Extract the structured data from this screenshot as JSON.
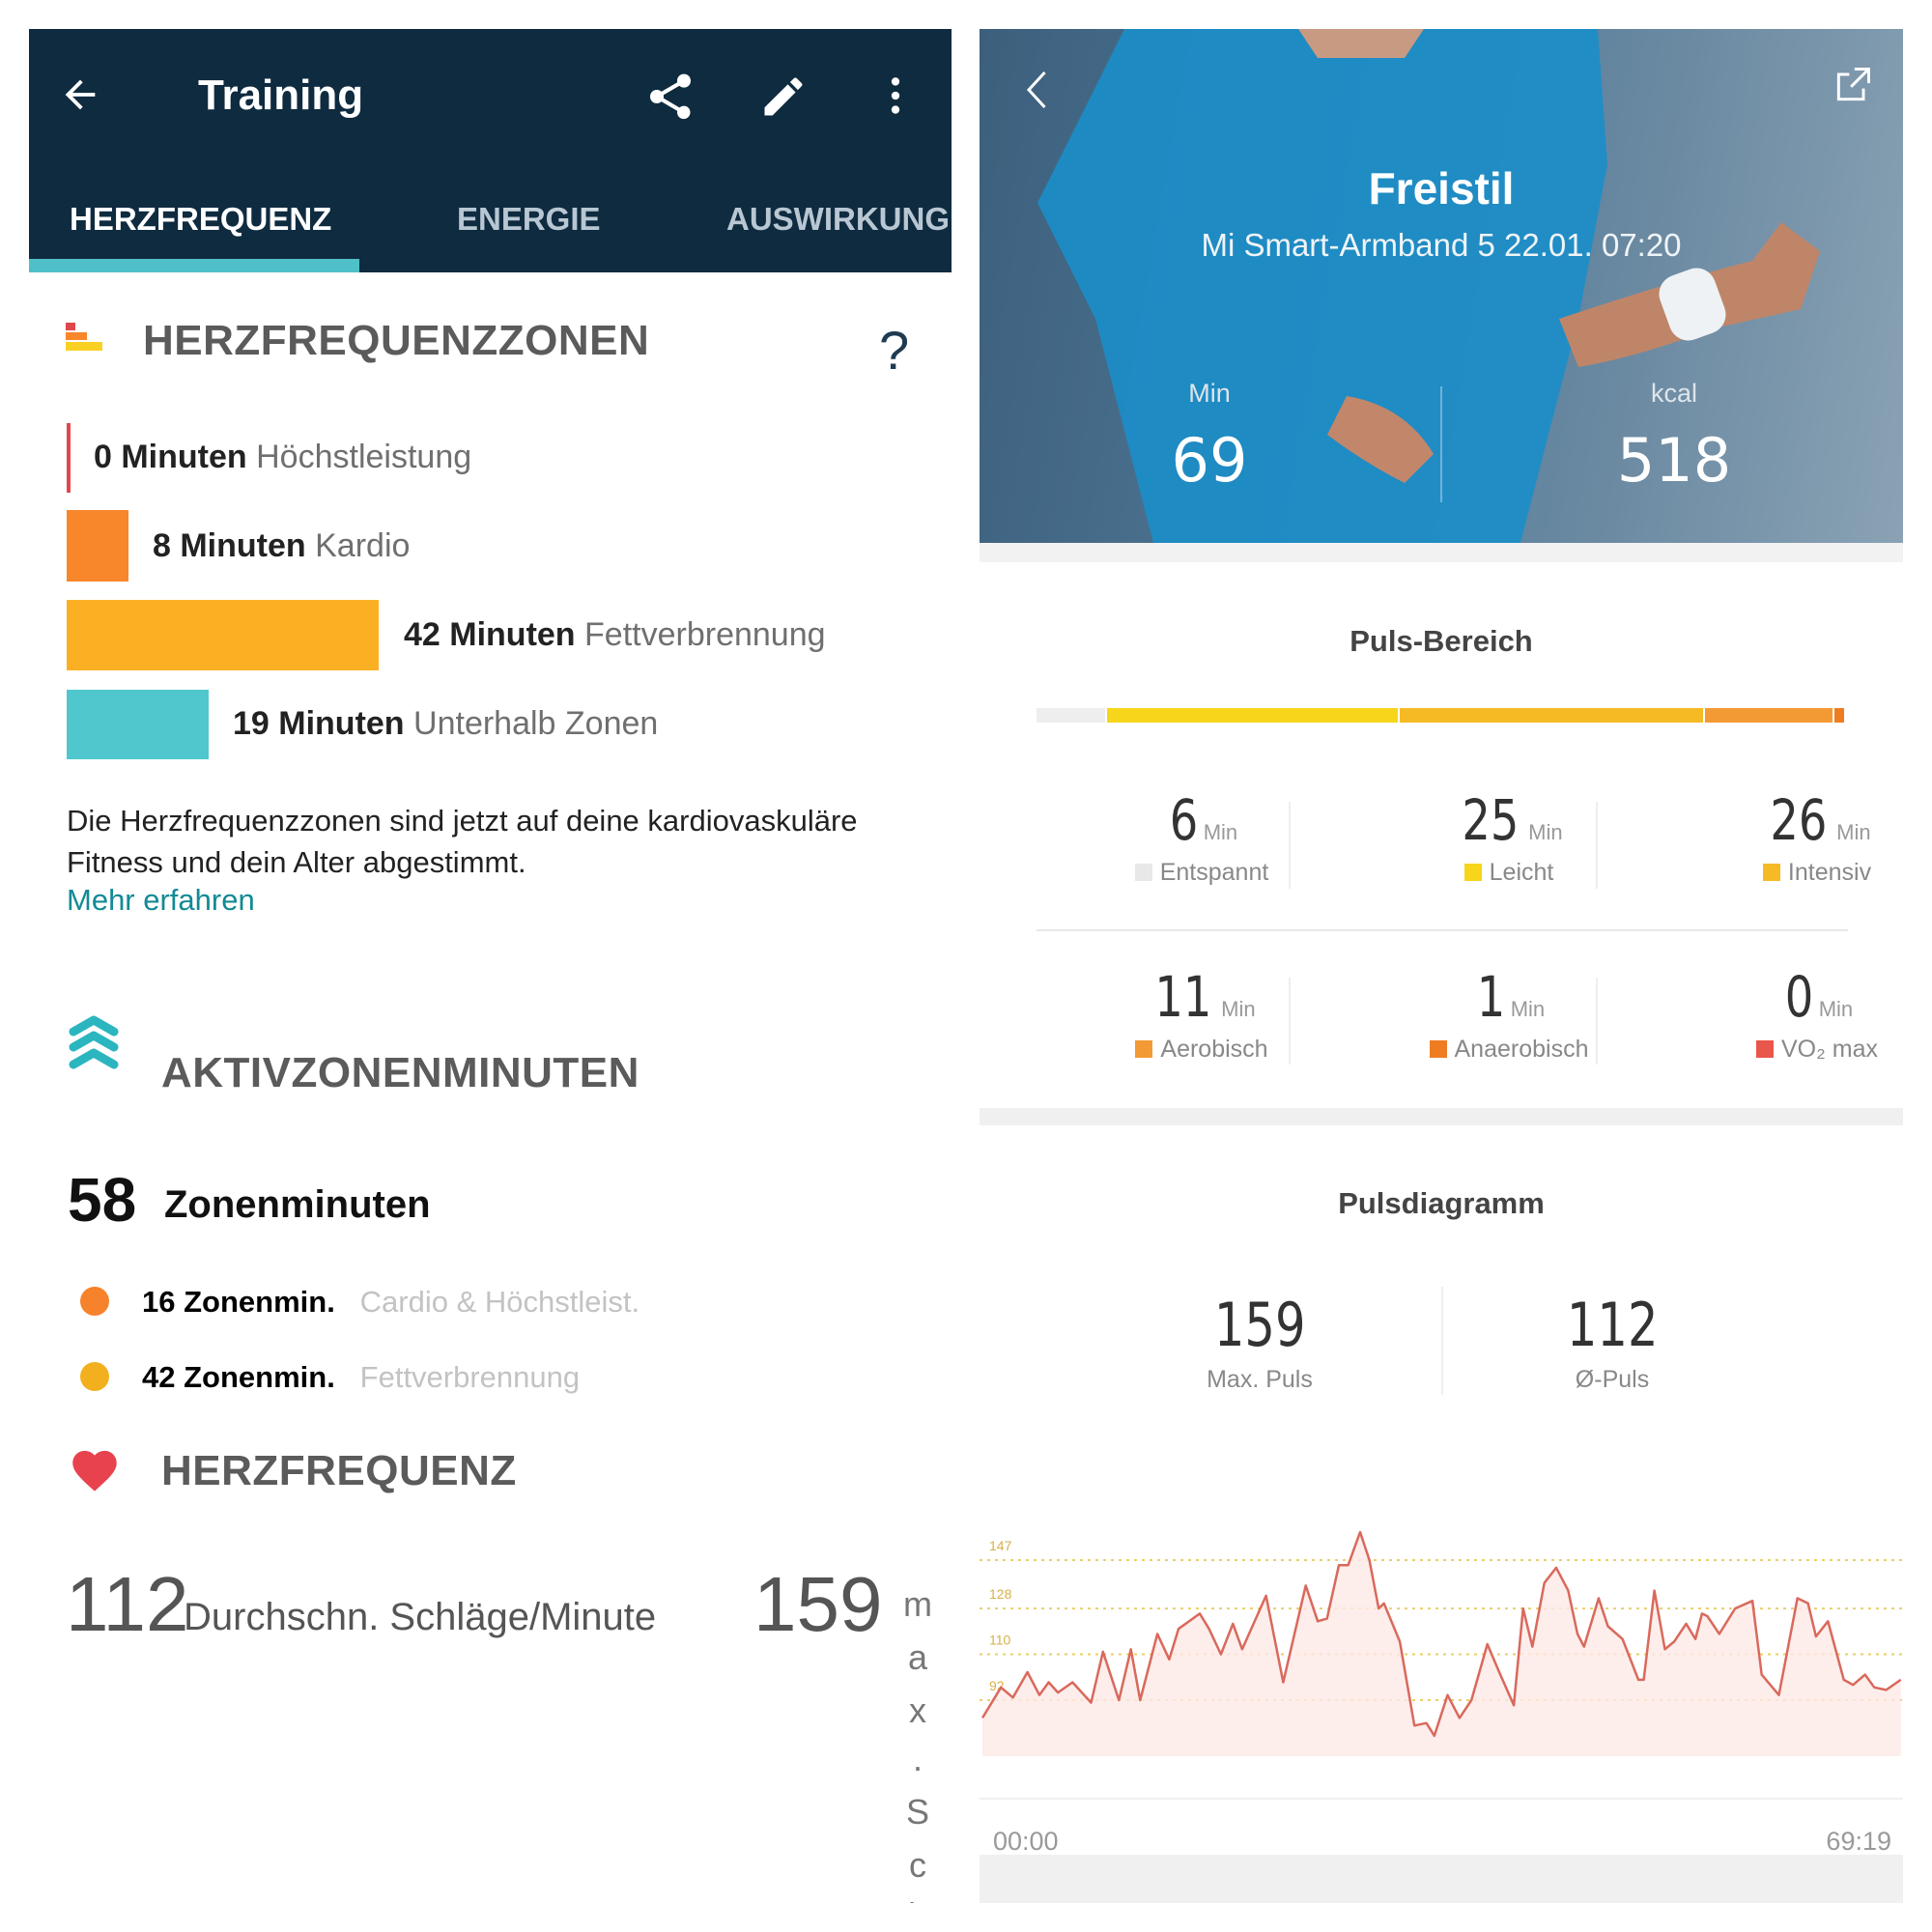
{
  "left": {
    "title": "Training",
    "icons": {
      "back": "arrow-left-icon",
      "share": "share-icon",
      "edit": "pencil-icon",
      "more": "more-vertical-icon"
    },
    "tabs": [
      {
        "label": "HERZFREQUENZ",
        "active": true
      },
      {
        "label": "ENERGIE"
      },
      {
        "label": "AUSWIRKUNGE"
      }
    ],
    "zones_section": {
      "title": "HERZFREQUENZZONEN",
      "help": "?",
      "zones": [
        {
          "minutes": "0 Minuten",
          "name": "Höchstleistung",
          "value": 0,
          "color": "#e0474c"
        },
        {
          "minutes": "8 Minuten",
          "name": "Kardio",
          "value": 8,
          "color": "#f8862a"
        },
        {
          "minutes": "42 Minuten",
          "name": "Fettverbrennung",
          "value": 42,
          "color": "#fbb024"
        },
        {
          "minutes": "19 Minuten",
          "name": "Unterhalb Zonen",
          "value": 19,
          "color": "#4fc7cc"
        }
      ],
      "info": "Die Herzfrequenzzonen sind jetzt auf deine kardiovaskuläre Fitness und dein Alter abgestimmt.",
      "link": "Mehr erfahren"
    },
    "azm": {
      "title": "AKTIVZONENMINUTEN",
      "total": "58",
      "total_label": "Zonenminuten",
      "rows": [
        {
          "value": "16 Zonenmin.",
          "label": "Cardio & Höchstleist.",
          "color": "#f6822b"
        },
        {
          "value": "42 Zonenmin.",
          "label": "Fettverbrennung",
          "color": "#f2b01f"
        }
      ]
    },
    "hr": {
      "title": "HERZFREQUENZ",
      "avg": "112",
      "avg_label": "Durchschn. Schläge/Minute",
      "max": "159",
      "max_label_chars": [
        "m",
        "a",
        "x",
        ".",
        "S",
        "c",
        "h"
      ]
    }
  },
  "right": {
    "hero": {
      "title": "Freistil",
      "subtitle": "Mi Smart-Armband 5 22.01. 07:20",
      "stats": [
        {
          "label": "Min",
          "value": "69"
        },
        {
          "label": "kcal",
          "value": "518"
        }
      ],
      "icons": {
        "back": "chevron-left-icon",
        "share": "external-link-icon"
      }
    },
    "range": {
      "title": "Puls-Bereich",
      "unit": "Min",
      "bar": [
        {
          "value": 6,
          "color": "#eeeeee"
        },
        {
          "value": 25,
          "color": "#f7d51b"
        },
        {
          "value": 26,
          "color": "#f6bb24"
        },
        {
          "value": 11,
          "color": "#f49a34"
        },
        {
          "value": 1,
          "color": "#ee7d22"
        },
        {
          "value": 0,
          "color": "#e9574b"
        }
      ],
      "cells": [
        {
          "value": "6",
          "label": "Entspannt",
          "color": "#e8e8e8"
        },
        {
          "value": "25",
          "label": "Leicht",
          "color": "#f7d51b"
        },
        {
          "value": "26",
          "label": "Intensiv",
          "color": "#f6bb24"
        },
        {
          "value": "11",
          "label": "Aerobisch",
          "color": "#f49a34"
        },
        {
          "value": "1",
          "label": "Anaerobisch",
          "color": "#ee7d22"
        },
        {
          "value": "0",
          "label": "VO₂ max",
          "color": "#e9574b"
        }
      ]
    },
    "diagram": {
      "title": "Pulsdiagramm",
      "stats": [
        {
          "value": "159",
          "label": "Max. Puls"
        },
        {
          "value": "112",
          "label": "Ø-Puls"
        }
      ]
    }
  },
  "chart_data": {
    "type": "area",
    "xlabel": "",
    "ylabel": "",
    "x_tick_labels": [
      "00:00",
      "69:19"
    ],
    "y_gridlines": [
      147,
      128,
      110,
      92
    ],
    "y_tick_labels": [
      "147",
      "128",
      "110",
      "92"
    ],
    "xlim": [
      0,
      69.32
    ],
    "ylim": [
      70,
      165
    ],
    "line_color": "#d9695c",
    "fill_color": "#fde8e6",
    "grid_color": "#e9cf6a",
    "x": [
      0,
      1.4,
      2.3,
      3.4,
      4.3,
      5.0,
      5.7,
      6.8,
      8.2,
      9.1,
      10.3,
      11.2,
      11.9,
      13.2,
      14.1,
      14.8,
      16.4,
      17.1,
      18.0,
      18.9,
      19.6,
      21.4,
      22.7,
      24.4,
      25.3,
      26.0,
      26.9,
      27.6,
      28.5,
      29.2,
      29.9,
      30.3,
      31.5,
      32.6,
      33.5,
      34.1,
      35.1,
      36.0,
      36.9,
      38.1,
      39.0,
      40.1,
      40.8,
      41.5,
      42.4,
      43.3,
      44.2,
      44.9,
      45.4,
      46.5,
      47.2,
      48.3,
      49.5,
      49.9,
      50.7,
      51.5,
      52.2,
      53.1,
      53.8,
      54.3,
      54.7,
      55.6,
      56.8,
      58.1,
      58.8,
      60.1,
      61.5,
      62.3,
      62.9,
      63.8,
      65.0,
      65.7,
      66.6,
      67.3,
      68.2,
      69.3
    ],
    "y": [
      85,
      97,
      93,
      103,
      94,
      99,
      95,
      99,
      91,
      111,
      92,
      112,
      92,
      118,
      108,
      120,
      126,
      120,
      110,
      122,
      112,
      133,
      99,
      137,
      123,
      124,
      145,
      145,
      158,
      147,
      128,
      130,
      115,
      82,
      83,
      78,
      94,
      85,
      92,
      114,
      103,
      90,
      128,
      113,
      138,
      144,
      135,
      118,
      113,
      132,
      121,
      116,
      100,
      100,
      135,
      112,
      115,
      122,
      116,
      126,
      125,
      118,
      128,
      131,
      102,
      94,
      132,
      130,
      117,
      123,
      100,
      98,
      102,
      97,
      96,
      100
    ]
  }
}
